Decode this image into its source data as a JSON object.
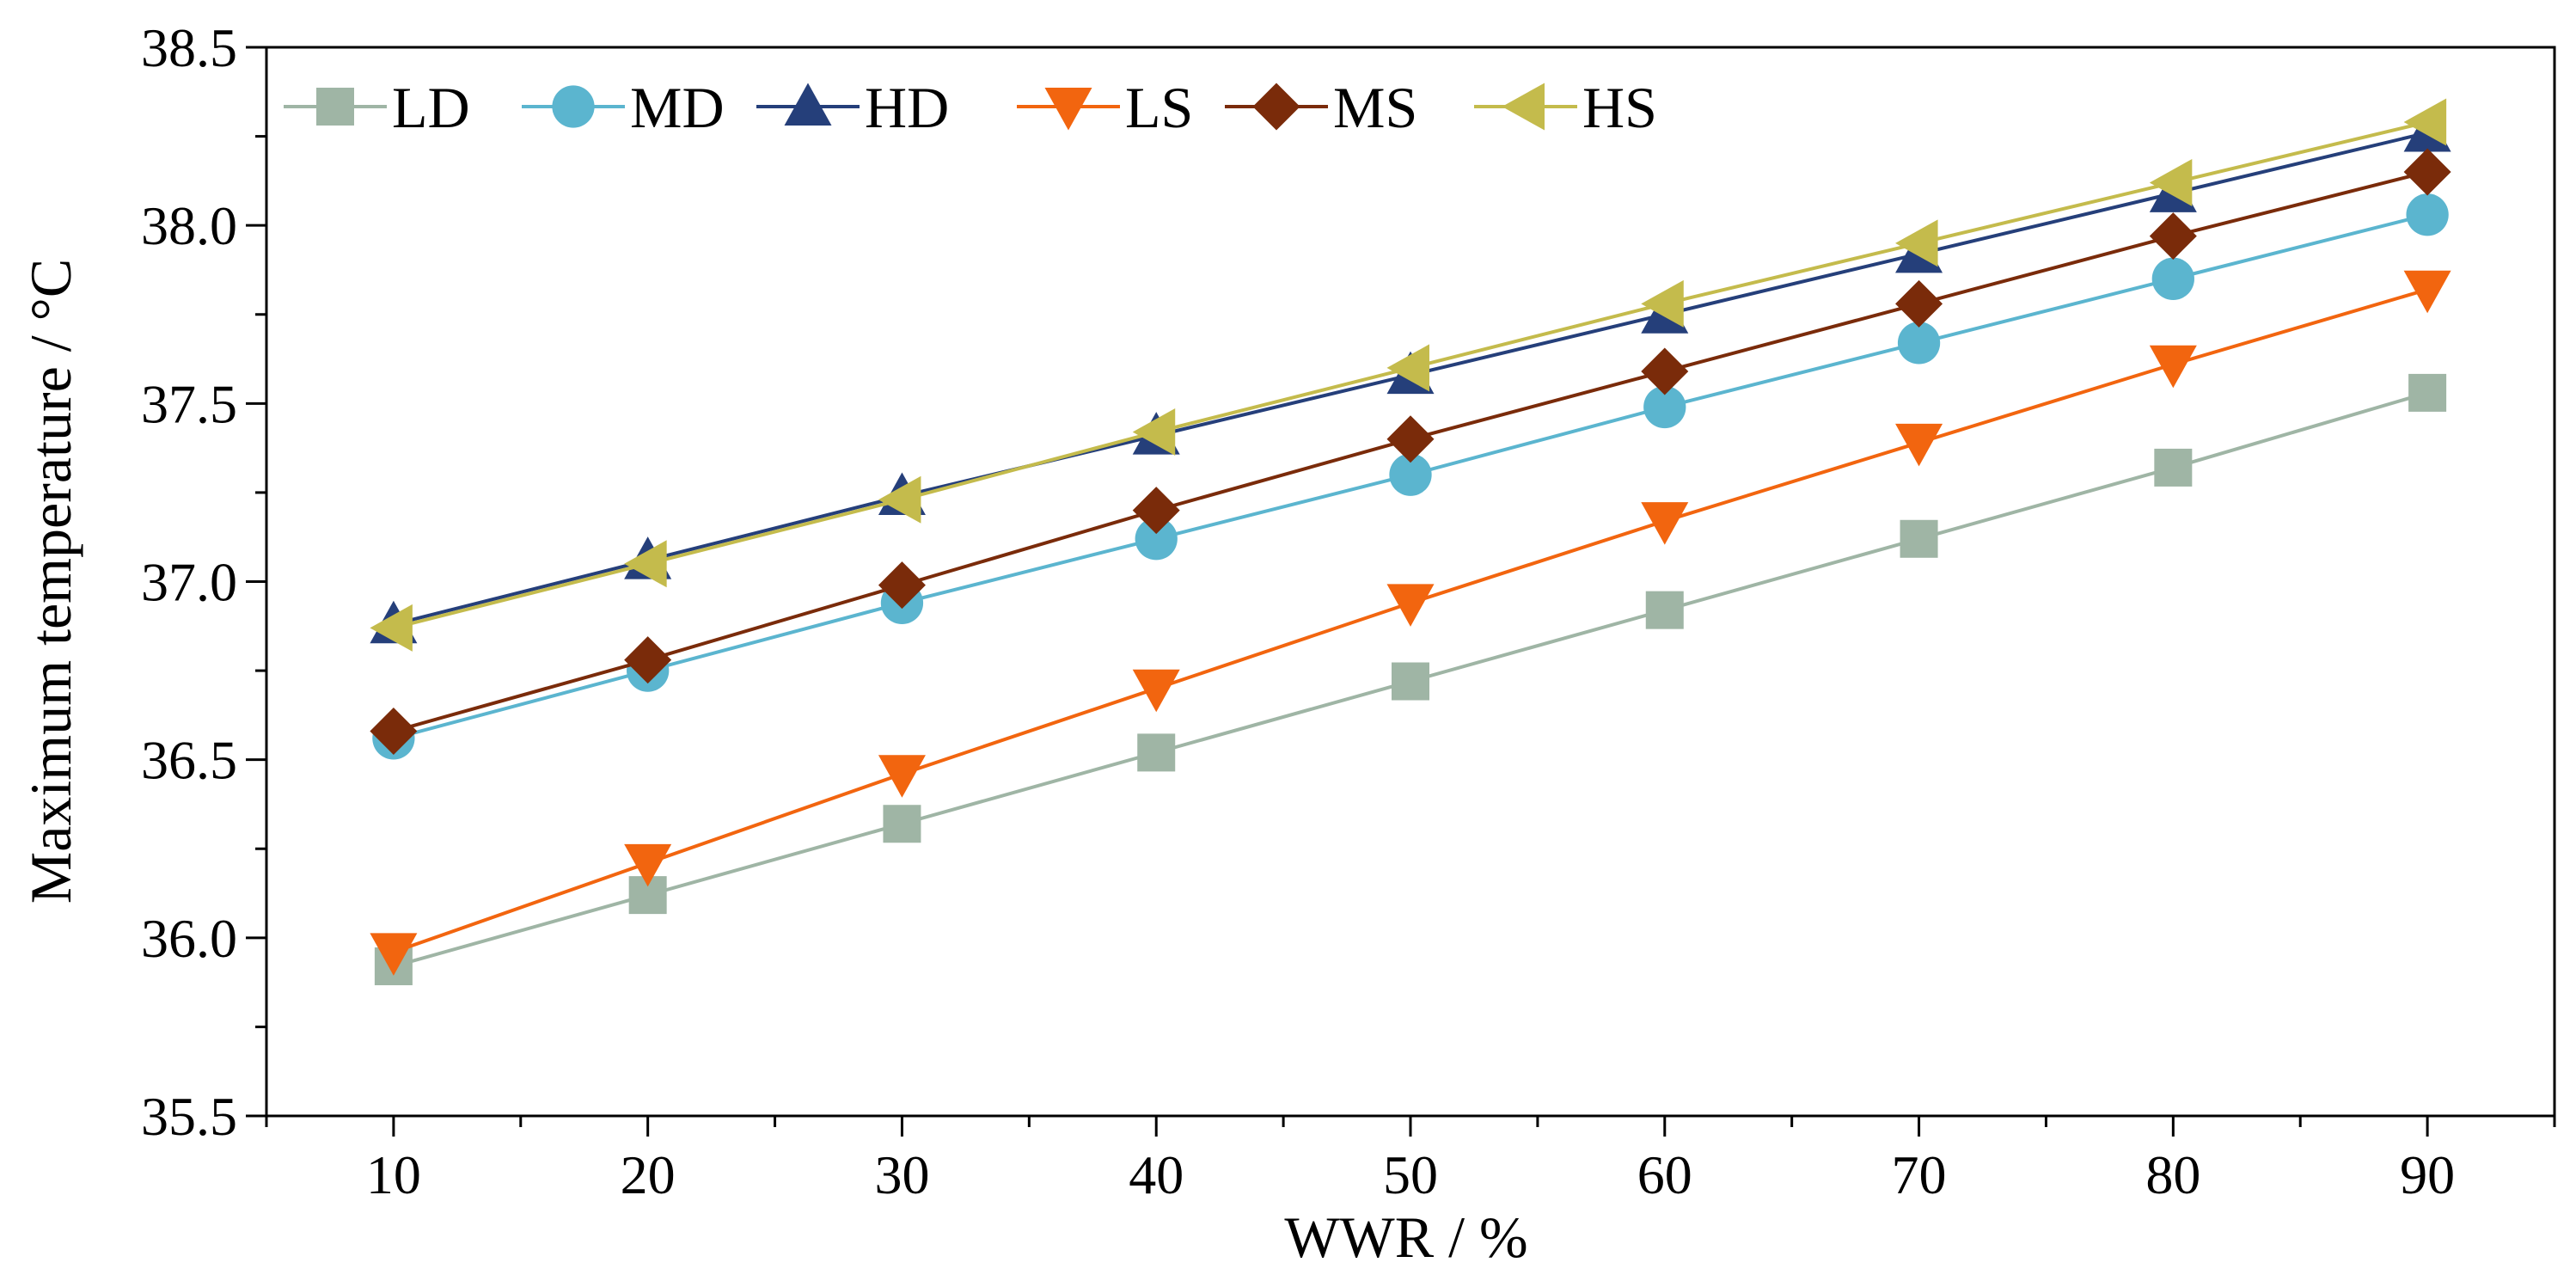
{
  "chart_data": {
    "type": "line",
    "title": "",
    "xlabel": "WWR / %",
    "ylabel": "Maximum temperature / °C",
    "x": [
      10,
      20,
      30,
      40,
      50,
      60,
      70,
      80,
      90
    ],
    "xlim": [
      5,
      95
    ],
    "ylim": [
      35.5,
      38.5
    ],
    "xticks": [
      "10",
      "20",
      "30",
      "40",
      "50",
      "60",
      "70",
      "80",
      "90"
    ],
    "yticks": [
      "35.5",
      "36.0",
      "36.5",
      "37.0",
      "37.5",
      "38.0",
      "38.5"
    ],
    "legend_position": "top-left",
    "grid": false,
    "series": [
      {
        "name": "LD",
        "color": "#9fb5a5",
        "marker": "square",
        "values": [
          35.92,
          36.12,
          36.32,
          36.52,
          36.72,
          36.92,
          37.12,
          37.32,
          37.53
        ]
      },
      {
        "name": "MD",
        "color": "#5bb5cf",
        "marker": "circle",
        "values": [
          36.56,
          36.75,
          36.94,
          37.12,
          37.3,
          37.49,
          37.67,
          37.85,
          38.03
        ]
      },
      {
        "name": "HD",
        "color": "#253f7a",
        "marker": "triangle-up",
        "values": [
          36.88,
          37.06,
          37.24,
          37.41,
          37.58,
          37.75,
          37.92,
          38.09,
          38.26
        ]
      },
      {
        "name": "LS",
        "color": "#f2650f",
        "marker": "triangle-down",
        "values": [
          35.96,
          36.21,
          36.46,
          36.7,
          36.94,
          37.17,
          37.39,
          37.61,
          37.82
        ]
      },
      {
        "name": "MS",
        "color": "#7a2b0a",
        "marker": "diamond",
        "values": [
          36.58,
          36.78,
          36.99,
          37.2,
          37.4,
          37.59,
          37.78,
          37.97,
          38.15
        ]
      },
      {
        "name": "HS",
        "color": "#c4bb4c",
        "marker": "triangle-left",
        "values": [
          36.87,
          37.05,
          37.23,
          37.42,
          37.6,
          37.78,
          37.95,
          38.12,
          38.29
        ]
      }
    ]
  }
}
